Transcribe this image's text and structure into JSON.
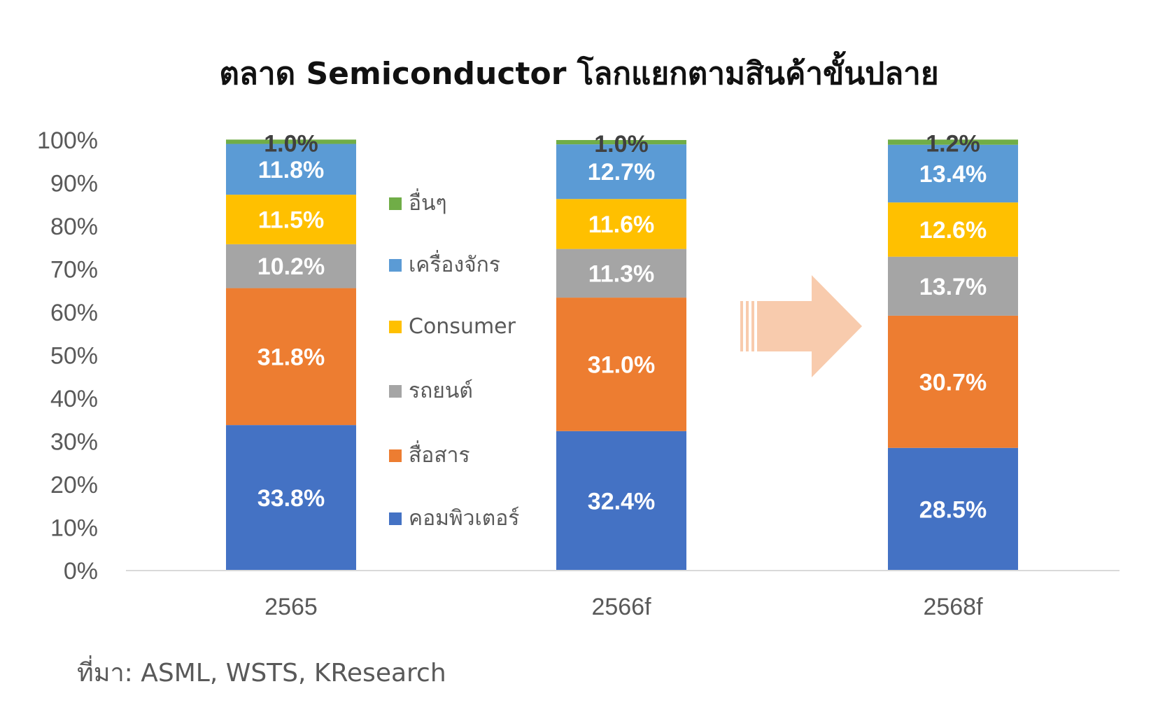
{
  "chart_data": {
    "type": "bar",
    "stacked": true,
    "title": "ตลาด Semiconductor โลกแยกตามสินค้าขั้นปลาย",
    "categories": [
      "2565",
      "2566f",
      "2568f"
    ],
    "ylim": [
      0,
      100
    ],
    "y_ticks": [
      "0%",
      "10%",
      "20%",
      "30%",
      "40%",
      "50%",
      "60%",
      "70%",
      "80%",
      "90%",
      "100%"
    ],
    "grid": false,
    "legend_position": "center, between first and second bars",
    "series": [
      {
        "name": "คอมพิวเตอร์",
        "color": "#4472C4",
        "values": [
          33.8,
          32.4,
          28.5
        ],
        "labels": [
          "33.8%",
          "32.4%",
          "28.5%"
        ]
      },
      {
        "name": "สื่อสาร",
        "color": "#ED7D31",
        "values": [
          31.8,
          31.0,
          30.7
        ],
        "labels": [
          "31.8%",
          "31.0%",
          "30.7%"
        ]
      },
      {
        "name": "รถยนต์",
        "color": "#A5A5A5",
        "values": [
          10.2,
          11.3,
          13.7
        ],
        "labels": [
          "10.2%",
          "11.3%",
          "13.7%"
        ]
      },
      {
        "name": "Consumer",
        "color": "#FFC000",
        "values": [
          11.5,
          11.6,
          12.6
        ],
        "labels": [
          "11.5%",
          "11.6%",
          "12.6%"
        ]
      },
      {
        "name": "เครื่องจักร",
        "color": "#5B9BD5",
        "values": [
          11.8,
          12.7,
          13.4
        ],
        "labels": [
          "11.8%",
          "12.7%",
          "13.4%"
        ]
      },
      {
        "name": "อื่นๆ",
        "color": "#70AD47",
        "values": [
          1.0,
          1.0,
          1.2
        ],
        "labels": [
          "1.0%",
          "1.0%",
          "1.2%"
        ]
      }
    ],
    "annotation_arrow_color": "#F8CBAD"
  },
  "source": "ที่มา: ASML, WSTS, KResearch"
}
